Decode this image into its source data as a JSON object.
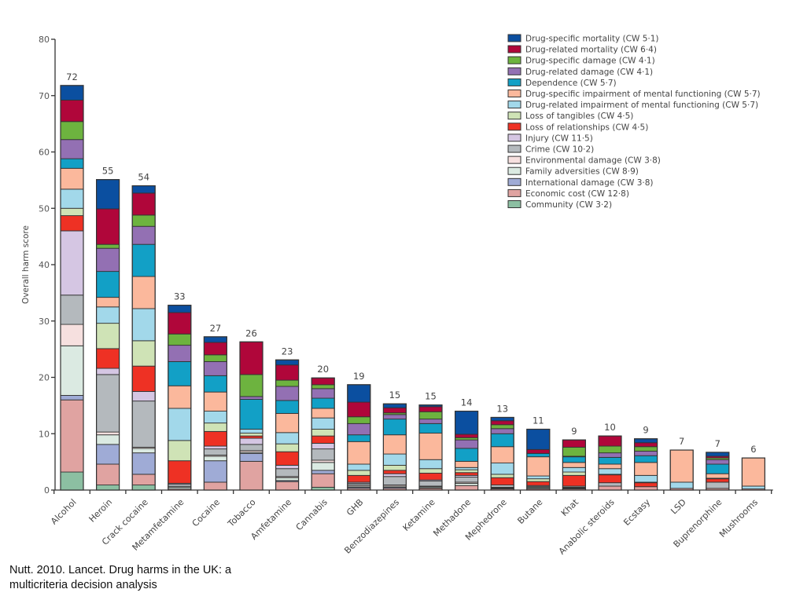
{
  "chart_data": {
    "type": "bar",
    "stacked": true,
    "title": "",
    "xlabel": "",
    "ylabel": "Overall harm score",
    "ylim": [
      0,
      80
    ],
    "yticks": [
      0,
      10,
      20,
      30,
      40,
      50,
      60,
      70,
      80
    ],
    "grid": false,
    "legend_position": "top-right",
    "categories": [
      "Alcohol",
      "Heroin",
      "Crack cocaine",
      "Metamfetamine",
      "Cocaine",
      "Tobacco",
      "Amfetamine",
      "Cannabis",
      "GHB",
      "Benzodiazepines",
      "Ketamine",
      "Methadone",
      "Mephedrone",
      "Butane",
      "Khat",
      "Anabolic steroids",
      "Ecstasy",
      "LSD",
      "Buprenorphine",
      "Mushrooms"
    ],
    "totals": [
      "72",
      "55",
      "54",
      "33",
      "27",
      "26",
      "23",
      "20",
      "19",
      "15",
      "15",
      "14",
      "13",
      "11",
      "9",
      "10",
      "9",
      "7",
      "7",
      "6"
    ],
    "series": [
      {
        "name": "Community (CW 3·2)",
        "color": "#8cbfa2",
        "values": [
          3.2,
          0.9,
          0.9,
          0,
          0,
          0,
          0,
          0.5,
          0,
          0,
          0,
          0,
          0,
          0,
          0,
          0,
          0,
          0,
          0,
          0
        ]
      },
      {
        "name": "Economic cost (CW 12·8)",
        "color": "#e0a3a1",
        "values": [
          12.8,
          3.7,
          1.9,
          0.2,
          1.4,
          5.1,
          1.5,
          2.4,
          0.3,
          0.3,
          0.3,
          0.8,
          0.2,
          0.2,
          0.2,
          0.7,
          0.6,
          0.3,
          0.3,
          0.2
        ]
      },
      {
        "name": "International damage (CW 3·8)",
        "color": "#9fabd6",
        "values": [
          0.8,
          3.5,
          3.8,
          0,
          3.8,
          1.4,
          0.2,
          0.6,
          0.2,
          0.2,
          0.1,
          0,
          0.1,
          0.1,
          0.1,
          0,
          0,
          0,
          0,
          0
        ]
      },
      {
        "name": "Family adversities (CW 8·9)",
        "color": "#dbeae2",
        "values": [
          8.8,
          1.7,
          0.8,
          0.3,
          0.8,
          0.2,
          0.5,
          1.4,
          0.2,
          0.2,
          0.2,
          0.4,
          0.1,
          0.2,
          0.1,
          0,
          0,
          0,
          0,
          0
        ]
      },
      {
        "name": "Environmental damage (CW 3·8)",
        "color": "#f6e0df",
        "values": [
          3.8,
          0.5,
          0.2,
          0.1,
          0.2,
          0.3,
          0.2,
          0.4,
          0.2,
          0.2,
          0.1,
          0.2,
          0.1,
          0.1,
          0.1,
          0,
          0,
          0,
          0,
          0
        ]
      },
      {
        "name": "Crime (CW 10·2)",
        "color": "#b4b9bd",
        "values": [
          5.2,
          10.2,
          8.2,
          0.4,
          1.1,
          1.1,
          1.4,
          2.0,
          0.3,
          1.5,
          0.9,
          0.9,
          0.4,
          0.2,
          0.2,
          0.6,
          0,
          0,
          1.1,
          0
        ]
      },
      {
        "name": "Injury (CW 11·5)",
        "color": "#d5c6e3",
        "values": [
          11.4,
          1.1,
          1.7,
          0.2,
          0.5,
          1.1,
          0.6,
          1.0,
          0.2,
          0.5,
          0.2,
          0.3,
          0,
          0,
          0,
          0,
          0,
          0,
          0,
          0
        ]
      },
      {
        "name": "Loss of relationships (CW 4·5)",
        "color": "#ee3124",
        "values": [
          2.7,
          3.5,
          4.5,
          4.0,
          2.6,
          0.4,
          2.4,
          1.3,
          1.2,
          0.6,
          1.2,
          0.5,
          1.3,
          0.7,
          1.9,
          1.4,
          0.7,
          0,
          0.6,
          0
        ]
      },
      {
        "name": "Loss of tangibles (CW 4·5)",
        "color": "#cfe3b6",
        "values": [
          1.3,
          4.5,
          4.5,
          3.6,
          1.5,
          0.5,
          1.4,
          1.2,
          0.9,
          0.9,
          0.8,
          0.5,
          0.6,
          0.5,
          0.6,
          0.1,
          0.1,
          0,
          0,
          0
        ]
      },
      {
        "name": "Drug-related impairment of mental functioning (CW 5·7)",
        "color": "#a2d8ea",
        "values": [
          3.4,
          2.9,
          5.7,
          5.7,
          2.1,
          0.7,
          2.0,
          2.0,
          1.1,
          2.0,
          1.6,
          0.4,
          2.0,
          0.5,
          0.8,
          1.0,
          1.2,
          1.1,
          0.1,
          0.5
        ]
      },
      {
        "name": "Drug-specific impairment of mental functioning (CW 5·7)",
        "color": "#fbb89c",
        "values": [
          3.7,
          1.7,
          5.7,
          4.0,
          3.4,
          0,
          3.4,
          1.7,
          4.0,
          3.4,
          4.7,
          1.1,
          2.9,
          3.4,
          0.9,
          0.8,
          2.3,
          5.7,
          0.8,
          5.0
        ]
      },
      {
        "name": "Dependence (CW 5·7)",
        "color": "#12a0c6",
        "values": [
          1.7,
          4.6,
          5.7,
          4.3,
          2.9,
          5.3,
          2.3,
          1.8,
          1.2,
          2.8,
          1.7,
          2.3,
          2.3,
          0.6,
          1.0,
          1.2,
          1.2,
          0,
          1.7,
          0
        ]
      },
      {
        "name": "Drug-related damage (CW 4·1)",
        "color": "#9370b3",
        "values": [
          3.4,
          4.1,
          3.2,
          2.9,
          2.5,
          0.5,
          2.5,
          1.7,
          2.0,
          0.8,
          0.8,
          1.5,
          0.9,
          0,
          0.1,
          0.8,
          0.8,
          0,
          0.8,
          0
        ]
      },
      {
        "name": "Drug-specific damage (CW 4·1)",
        "color": "#6db33f",
        "values": [
          3.2,
          0.7,
          2.0,
          2.0,
          1.2,
          3.9,
          1.1,
          0.7,
          1.2,
          0.3,
          1.3,
          0.4,
          0.7,
          0,
          1.6,
          1.2,
          0.8,
          0,
          0.3,
          0
        ]
      },
      {
        "name": "Drug-related mortality (CW 6·4)",
        "color": "#b0063a",
        "values": [
          3.8,
          6.3,
          3.9,
          3.8,
          2.2,
          5.8,
          2.7,
          1.2,
          2.6,
          0.9,
          0.9,
          0.6,
          0.7,
          0.7,
          1.3,
          1.8,
          0.7,
          0,
          0.3,
          0
        ]
      },
      {
        "name": "Drug-specific mortality (CW 5·1)",
        "color": "#0b4fa0",
        "values": [
          2.6,
          5.2,
          1.3,
          1.3,
          1.0,
          0,
          0.9,
          0,
          3.1,
          0.7,
          0.3,
          4.1,
          0.6,
          3.6,
          0,
          0,
          0.7,
          0,
          0.7,
          0
        ]
      }
    ],
    "legend_order": [
      "Drug-specific mortality (CW 5·1)",
      "Drug-related mortality (CW 6·4)",
      "Drug-specific damage (CW 4·1)",
      "Drug-related damage (CW 4·1)",
      "Dependence (CW 5·7)",
      "Drug-specific impairment of mental functioning (CW 5·7)",
      "Drug-related impairment of mental functioning (CW 5·7)",
      "Loss of tangibles (CW 4·5)",
      "Loss of relationships (CW 4·5)",
      "Injury (CW 11·5)",
      "Crime (CW 10·2)",
      "Environmental damage (CW 3·8)",
      "Family adversities (CW 8·9)",
      "International damage (CW 3·8)",
      "Economic cost (CW 12·8)",
      "Community (CW 3·2)"
    ]
  },
  "caption": "Nutt. 2010. Lancet. Drug harms in the UK: a multicriteria decision analysis"
}
